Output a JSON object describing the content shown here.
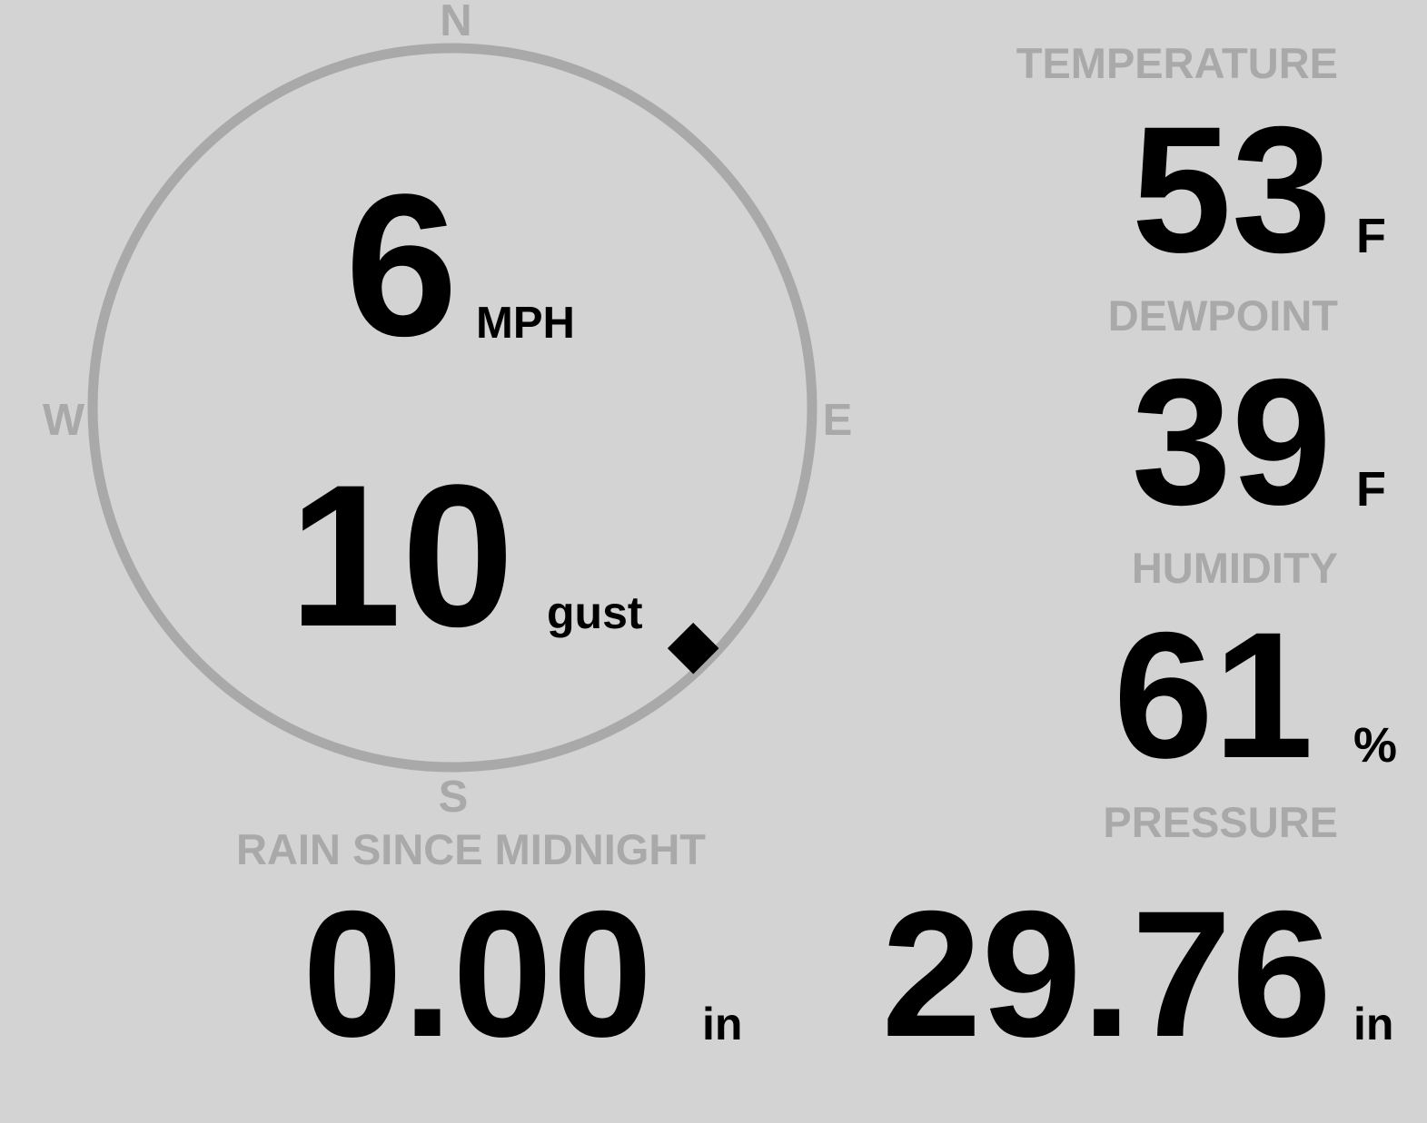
{
  "colors": {
    "background": "#d3d3d3",
    "label": "#a9a9a9",
    "value": "#000000"
  },
  "wind": {
    "compass": {
      "north": "N",
      "east": "E",
      "south": "S",
      "west": "W"
    },
    "speed": "6",
    "speed_unit": "MPH",
    "gust": "10",
    "gust_unit": "gust",
    "direction_deg": 135,
    "direction_marker_icon": "diamond-icon"
  },
  "temperature": {
    "label": "TEMPERATURE",
    "value": "53",
    "unit": "F"
  },
  "dewpoint": {
    "label": "DEWPOINT",
    "value": "39",
    "unit": "F"
  },
  "humidity": {
    "label": "HUMIDITY",
    "value": "61",
    "unit": "%"
  },
  "rain": {
    "label": "RAIN SINCE MIDNIGHT",
    "value": "0.00",
    "unit": "in"
  },
  "pressure": {
    "label": "PRESSURE",
    "value": "29.76",
    "unit": "in"
  }
}
